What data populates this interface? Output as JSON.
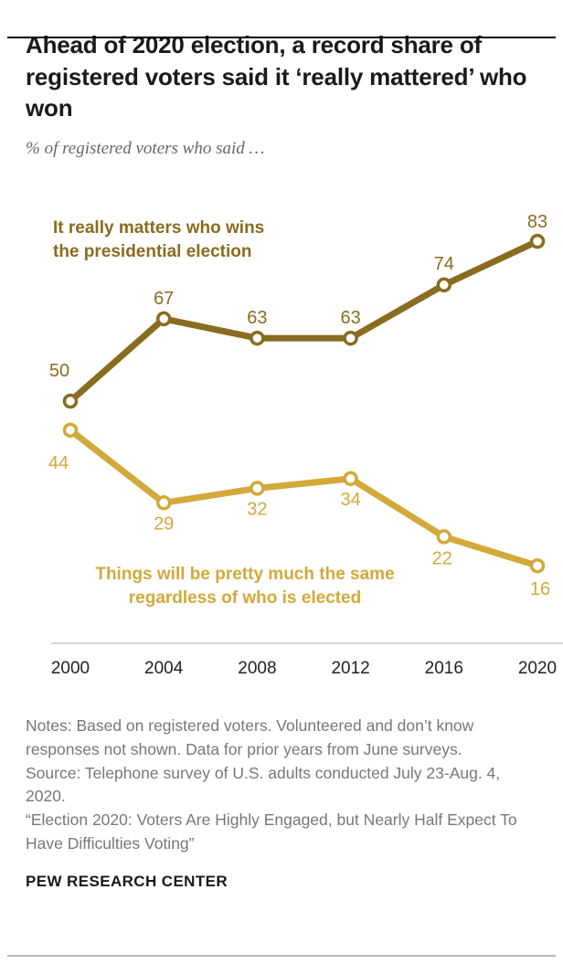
{
  "header": {
    "title": "Ahead of 2020 election, a record share of registered voters said it ‘really mattered’ who won",
    "subtitle": "% of registered voters who said …"
  },
  "chart_data": {
    "type": "line",
    "x": [
      "2000",
      "2004",
      "2008",
      "2012",
      "2016",
      "2020"
    ],
    "xlabel": "",
    "ylabel": "% of registered voters",
    "ylim": [
      0,
      100
    ],
    "grid": false,
    "markers": "open-circle",
    "legend_position": "annotations-on-chart",
    "series": [
      {
        "name": "It really matters who wins the presidential election",
        "annotation_lines": [
          "It really matters who wins",
          "the presidential election"
        ],
        "color": "#8a6c20",
        "values": [
          50,
          67,
          63,
          63,
          74,
          83
        ]
      },
      {
        "name": "Things will be pretty much the same regardless of who is elected",
        "annotation_lines": [
          "Things will be pretty much the same",
          "regardless of who is elected"
        ],
        "color": "#d2a93a",
        "values": [
          44,
          29,
          32,
          34,
          22,
          16
        ]
      }
    ]
  },
  "notes": [
    "Notes: Based on registered voters. Volunteered and don’t know responses not shown. Data for prior years from June surveys.",
    "Source: Telephone survey of U.S. adults conducted July 23-Aug. 4, 2020.",
    "“Election 2020: Voters Are Highly Engaged, but Nearly Half Expect To Have Difficulties Voting”"
  ],
  "footer": {
    "brand": "PEW RESEARCH CENTER"
  }
}
